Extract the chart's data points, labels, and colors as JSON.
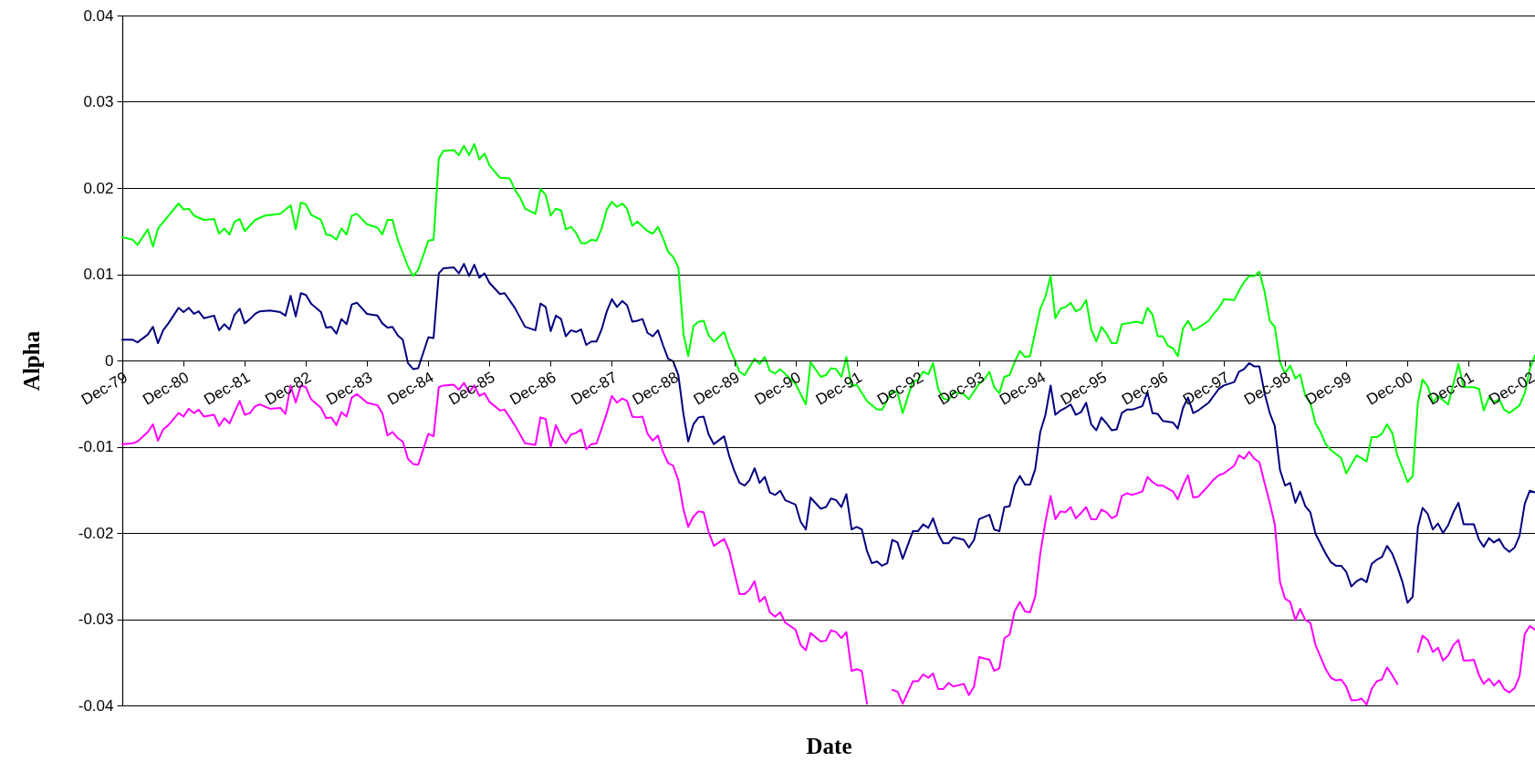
{
  "chart_data": {
    "type": "line",
    "xlabel": "Date",
    "ylabel": "Alpha",
    "grid": "y",
    "xlim": [
      "1979-12",
      "2003-01"
    ],
    "ylim": [
      -0.04,
      0.04
    ],
    "yticks": [
      -0.04,
      -0.03,
      -0.02,
      -0.01,
      0,
      0.01,
      0.02,
      0.03,
      0.04
    ],
    "xticks": [
      {
        "value": "1979-12",
        "label": "Dec-79"
      },
      {
        "value": "1980-12",
        "label": "Dec-80"
      },
      {
        "value": "1981-12",
        "label": "Dec-81"
      },
      {
        "value": "1982-12",
        "label": "Dec-82"
      },
      {
        "value": "1983-12",
        "label": "Dec-83"
      },
      {
        "value": "1984-12",
        "label": "Dec-84"
      },
      {
        "value": "1985-12",
        "label": "Dec-85"
      },
      {
        "value": "1986-12",
        "label": "Dec-86"
      },
      {
        "value": "1987-12",
        "label": "Dec-87"
      },
      {
        "value": "1988-12",
        "label": "Dec-88"
      },
      {
        "value": "1989-12",
        "label": "Dec-89"
      },
      {
        "value": "1990-12",
        "label": "Dec-90"
      },
      {
        "value": "1991-12",
        "label": "Dec-91"
      },
      {
        "value": "1992-12",
        "label": "Dec-92"
      },
      {
        "value": "1993-12",
        "label": "Dec-93"
      },
      {
        "value": "1994-12",
        "label": "Dec-94"
      },
      {
        "value": "1995-12",
        "label": "Dec-95"
      },
      {
        "value": "1996-12",
        "label": "Dec-96"
      },
      {
        "value": "1997-12",
        "label": "Dec-97"
      },
      {
        "value": "1998-12",
        "label": "Dec-98"
      },
      {
        "value": "1999-12",
        "label": "Dec-99"
      },
      {
        "value": "2000-12",
        "label": "Dec-00"
      },
      {
        "value": "2001-12",
        "label": "Dec-01"
      },
      {
        "value": "2002-12",
        "label": "Dec-02"
      }
    ],
    "series": [
      {
        "color": "#00ff00",
        "x": [
          "1979-12",
          "1980-02",
          "1980-03",
          "1980-05",
          "1980-06",
          "1980-07",
          "1980-11",
          "1980-12",
          "1981-01",
          "1981-02",
          "1981-04",
          "1981-06",
          "1981-07",
          "1981-08",
          "1981-09",
          "1981-10",
          "1981-11",
          "1981-12",
          "1982-02",
          "1982-04",
          "1982-07",
          "1982-09",
          "1982-10",
          "1982-11",
          "1982-12",
          "1983-01",
          "1983-03",
          "1983-04",
          "1983-05",
          "1983-06",
          "1983-07",
          "1983-08",
          "1983-09",
          "1983-10",
          "1983-12",
          "1984-02",
          "1984-03",
          "1984-04",
          "1984-05",
          "1984-06",
          "1984-08",
          "1984-09",
          "1984-10",
          "1984-12",
          "1985-01",
          "1985-02",
          "1985-03",
          "1985-05",
          "1985-06",
          "1985-07",
          "1985-08",
          "1985-09",
          "1985-10",
          "1985-11",
          "1985-12",
          "1986-02",
          "1986-04",
          "1986-05",
          "1986-06",
          "1986-07",
          "1986-09",
          "1986-10",
          "1986-11",
          "1986-12",
          "1987-01",
          "1987-02",
          "1987-03",
          "1987-04",
          "1987-05",
          "1987-06",
          "1987-07",
          "1987-08",
          "1987-09",
          "1987-10",
          "1987-11",
          "1987-12",
          "1988-01",
          "1988-02",
          "1988-03",
          "1988-04",
          "1988-05",
          "1988-07",
          "1988-08",
          "1988-09",
          "1988-10",
          "1988-11",
          "1988-12",
          "1989-01",
          "1989-02",
          "1989-03",
          "1989-04",
          "1989-05",
          "1989-06",
          "1989-07",
          "1989-08",
          "1989-10",
          "1989-11",
          "1989-12",
          "1990-01",
          "1990-02",
          "1990-04",
          "1990-05",
          "1990-06",
          "1990-07",
          "1990-08",
          "1990-09",
          "1990-12",
          "1991-02",
          "1991-03",
          "1991-05",
          "1991-06",
          "1991-07",
          "1991-08",
          "1991-09",
          "1991-10",
          "1991-11",
          "1991-12",
          "1992-02",
          "1992-04",
          "1992-05",
          "1992-07",
          "1992-08",
          "1992-09",
          "1992-11",
          "1992-12",
          "1993-01",
          "1993-02",
          "1993-03",
          "1993-04",
          "1993-05",
          "1993-06",
          "1993-07",
          "1993-09",
          "1993-10",
          "1993-12",
          "1994-01",
          "1994-02",
          "1994-03",
          "1994-04",
          "1994-05",
          "1994-06",
          "1994-07",
          "1994-08",
          "1994-09",
          "1994-10",
          "1994-12",
          "1995-01",
          "1995-02",
          "1995-03",
          "1995-04",
          "1995-05",
          "1995-06",
          "1995-07",
          "1995-08",
          "1995-09",
          "1995-10",
          "1995-11",
          "1995-12",
          "1996-01",
          "1996-02",
          "1996-03",
          "1996-04",
          "1996-05",
          "1996-07",
          "1996-08",
          "1996-09",
          "1996-10",
          "1996-11",
          "1996-12",
          "1997-01",
          "1997-02",
          "1997-03",
          "1997-04",
          "1997-05",
          "1997-06",
          "1997-07",
          "1997-09",
          "1997-10",
          "1997-11",
          "1997-12",
          "1998-02",
          "1998-03",
          "1998-04",
          "1998-05",
          "1998-06",
          "1998-07",
          "1998-08",
          "1998-09",
          "1998-10",
          "1998-11",
          "1998-12",
          "1999-01",
          "1999-02",
          "1999-03",
          "1999-04",
          "1999-05",
          "1999-06",
          "1999-07",
          "1999-08",
          "1999-09",
          "1999-11",
          "1999-12",
          "2000-02",
          "2000-04",
          "2000-05",
          "2000-06",
          "2000-07",
          "2000-08",
          "2000-09",
          "2000-10",
          "2000-11",
          "2000-12",
          "2001-01",
          "2001-02",
          "2001-03",
          "2001-04",
          "2001-05",
          "2001-06",
          "2001-08",
          "2001-09",
          "2001-10",
          "2001-11",
          "2002-01",
          "2002-02",
          "2002-03",
          "2002-04",
          "2002-05",
          "2002-06",
          "2002-07",
          "2002-08",
          "2002-10",
          "2002-11",
          "2002-12",
          "2003-01"
        ],
        "values": [
          0.0143,
          0.014,
          0.0134,
          0.0152,
          0.0132,
          0.0153,
          0.0182,
          0.0175,
          0.0176,
          0.0168,
          0.0163,
          0.0164,
          0.0147,
          0.0153,
          0.0146,
          0.0161,
          0.0164,
          0.015,
          0.0163,
          0.0168,
          0.017,
          0.018,
          0.0152,
          0.0183,
          0.0181,
          0.0169,
          0.0163,
          0.0146,
          0.0145,
          0.014,
          0.0153,
          0.0146,
          0.0168,
          0.017,
          0.0158,
          0.0154,
          0.0146,
          0.0163,
          0.0163,
          0.014,
          0.0109,
          0.0098,
          0.0105,
          0.0139,
          0.014,
          0.0234,
          0.0243,
          0.0244,
          0.0238,
          0.0249,
          0.0238,
          0.0251,
          0.0233,
          0.024,
          0.0226,
          0.0212,
          0.0211,
          0.0198,
          0.0189,
          0.0176,
          0.017,
          0.0199,
          0.0192,
          0.0168,
          0.0176,
          0.0174,
          0.0152,
          0.0155,
          0.0148,
          0.0136,
          0.0136,
          0.014,
          0.0139,
          0.0153,
          0.0175,
          0.0184,
          0.0178,
          0.0182,
          0.0176,
          0.0156,
          0.0161,
          0.015,
          0.0147,
          0.0155,
          0.0142,
          0.0126,
          0.012,
          0.0108,
          0.003,
          0.0005,
          0.004,
          0.0045,
          0.0046,
          0.0029,
          0.0022,
          0.0033,
          0.0015,
          0.0002,
          -0.0013,
          -0.0017,
          0.0002,
          -0.0004,
          0.0004,
          -0.0012,
          -0.0015,
          -0.001,
          -0.0027,
          -0.0051,
          -0.0002,
          -0.0019,
          -0.0017,
          -0.0009,
          -0.001,
          -0.0019,
          0.0004,
          -0.003,
          -0.0028,
          -0.0047,
          -0.0057,
          -0.0057,
          -0.0035,
          -0.0037,
          -0.0061,
          -0.0024,
          -0.0023,
          -0.0013,
          -0.0016,
          -0.0003,
          -0.0033,
          -0.0044,
          -0.0046,
          -0.0037,
          -0.0039,
          -0.0045,
          -0.0027,
          -0.0022,
          -0.0013,
          -0.0031,
          -0.0038,
          -0.0019,
          -0.0017,
          -0.0002,
          0.0011,
          0.0004,
          0.0005,
          0.006,
          0.0074,
          0.0098,
          0.0049,
          0.006,
          0.0062,
          0.0067,
          0.0057,
          0.006,
          0.007,
          0.0036,
          0.0022,
          0.0039,
          0.0031,
          0.002,
          0.002,
          0.0042,
          0.0043,
          0.0045,
          0.0043,
          0.0061,
          0.0053,
          0.0028,
          0.0028,
          0.0017,
          0.0014,
          0.0005,
          0.0037,
          0.0046,
          0.0035,
          0.0038,
          0.0046,
          0.0054,
          0.0061,
          0.0071,
          0.007,
          0.0081,
          0.0091,
          0.0098,
          0.0098,
          0.0103,
          0.008,
          0.0046,
          0.0039,
          -0.0002,
          -0.0015,
          -0.0006,
          -0.0021,
          -0.0016,
          -0.0041,
          -0.0049,
          -0.0073,
          -0.0083,
          -0.0097,
          -0.0104,
          -0.0113,
          -0.0131,
          -0.011,
          -0.0117,
          -0.0089,
          -0.0089,
          -0.0085,
          -0.0074,
          -0.0084,
          -0.011,
          -0.0125,
          -0.0141,
          -0.0134,
          -0.0049,
          -0.0022,
          -0.003,
          -0.0049,
          -0.0041,
          -0.0051,
          -0.0027,
          -0.0004,
          -0.0031,
          -0.0031,
          -0.0033,
          -0.0058,
          -0.0043,
          -0.0048,
          -0.0045,
          -0.0057,
          -0.0061,
          -0.0052,
          -0.0038,
          -0.001,
          0.0006
        ]
      },
      {
        "color": "#000080",
        "x": [
          "1979-12",
          "1980-02",
          "1980-03",
          "1980-05",
          "1980-06",
          "1980-07",
          "1980-08",
          "1980-09",
          "1980-11",
          "1980-12",
          "1981-01",
          "1981-02",
          "1981-03",
          "1981-04",
          "1981-06",
          "1981-07",
          "1981-08",
          "1981-09",
          "1981-10",
          "1981-11",
          "1981-12",
          "1982-01",
          "1982-02",
          "1982-03",
          "1982-05",
          "1982-07",
          "1982-08",
          "1982-09",
          "1982-10",
          "1982-11",
          "1982-12",
          "1983-01",
          "1983-03",
          "1983-04",
          "1983-05",
          "1983-06",
          "1983-07",
          "1983-08",
          "1983-09",
          "1983-10",
          "1983-12",
          "1984-02",
          "1984-03",
          "1984-04",
          "1984-05",
          "1984-06",
          "1984-07",
          "1984-08",
          "1984-09",
          "1984-10",
          "1984-12",
          "1985-01",
          "1985-02",
          "1985-03",
          "1985-05",
          "1985-06",
          "1985-07",
          "1985-08",
          "1985-09",
          "1985-10",
          "1985-11",
          "1985-12",
          "1986-02",
          "1986-03",
          "1986-05",
          "1986-07",
          "1986-09",
          "1986-10",
          "1986-11",
          "1986-12",
          "1987-01",
          "1987-02",
          "1987-03",
          "1987-04",
          "1987-05",
          "1987-06",
          "1987-07",
          "1987-08",
          "1987-09",
          "1987-10",
          "1987-11",
          "1987-12",
          "1988-01",
          "1988-02",
          "1988-03",
          "1988-04",
          "1988-05",
          "1988-06",
          "1988-07",
          "1988-08",
          "1988-09",
          "1988-10",
          "1988-11",
          "1988-12",
          "1989-01",
          "1989-02",
          "1989-03",
          "1989-04",
          "1989-05",
          "1989-06",
          "1989-07",
          "1989-08",
          "1989-10",
          "1989-11",
          "1989-12",
          "1990-01",
          "1990-02",
          "1990-03",
          "1990-04",
          "1990-05",
          "1990-06",
          "1990-07",
          "1990-08",
          "1990-09",
          "1990-10",
          "1990-12",
          "1991-01",
          "1991-02",
          "1991-03",
          "1991-05",
          "1991-06",
          "1991-07",
          "1991-08",
          "1991-09",
          "1991-10",
          "1991-11",
          "1991-12",
          "1992-01",
          "1992-02",
          "1992-03",
          "1992-04",
          "1992-05",
          "1992-06",
          "1992-07",
          "1992-08",
          "1992-09",
          "1992-11",
          "1992-12",
          "1993-01",
          "1993-02",
          "1993-03",
          "1993-04",
          "1993-05",
          "1993-06",
          "1993-07",
          "1993-09",
          "1993-10",
          "1993-11",
          "1993-12",
          "1994-02",
          "1994-03",
          "1994-04",
          "1994-05",
          "1994-06",
          "1994-07",
          "1994-08",
          "1994-09",
          "1994-10",
          "1994-11",
          "1994-12",
          "1995-01",
          "1995-02",
          "1995-03",
          "1995-04",
          "1995-05",
          "1995-06",
          "1995-07",
          "1995-08",
          "1995-09",
          "1995-10",
          "1995-11",
          "1995-12",
          "1996-01",
          "1996-02",
          "1996-03",
          "1996-04",
          "1996-05",
          "1996-06",
          "1996-08",
          "1996-09",
          "1996-10",
          "1996-11",
          "1996-12",
          "1997-02",
          "1997-03",
          "1997-04",
          "1997-05",
          "1997-06",
          "1997-07",
          "1997-09",
          "1997-10",
          "1997-11",
          "1997-12",
          "1998-02",
          "1998-03",
          "1998-04",
          "1998-05",
          "1998-06",
          "1998-07",
          "1998-08",
          "1998-09",
          "1998-10",
          "1998-11",
          "1998-12",
          "1999-01",
          "1999-02",
          "1999-03",
          "1999-04",
          "1999-05",
          "1999-06",
          "1999-08",
          "1999-09",
          "1999-10",
          "1999-11",
          "1999-12",
          "2000-01",
          "2000-02",
          "2000-03",
          "2000-04",
          "2000-05",
          "2000-06",
          "2000-07",
          "2000-08",
          "2000-09",
          "2000-10",
          "2000-11",
          "2000-12",
          "2001-01",
          "2001-02",
          "2001-03",
          "2001-04",
          "2001-05",
          "2001-06",
          "2001-07",
          "2001-08",
          "2001-09",
          "2001-10",
          "2001-11",
          "2001-12",
          "2002-01",
          "2002-02",
          "2002-03",
          "2002-04",
          "2002-05",
          "2002-06",
          "2002-07",
          "2002-08",
          "2002-09",
          "2002-10",
          "2002-11",
          "2002-12",
          "2003-01"
        ],
        "values": [
          0.0024,
          0.0024,
          0.0021,
          0.003,
          0.0039,
          0.002,
          0.0035,
          0.0043,
          0.0061,
          0.0056,
          0.0061,
          0.0054,
          0.0057,
          0.0049,
          0.0052,
          0.0035,
          0.0042,
          0.0036,
          0.0053,
          0.006,
          0.0043,
          0.0048,
          0.0054,
          0.0057,
          0.0058,
          0.0056,
          0.0052,
          0.0075,
          0.0051,
          0.0078,
          0.0076,
          0.0066,
          0.0056,
          0.0038,
          0.0039,
          0.0031,
          0.0048,
          0.0042,
          0.0065,
          0.0067,
          0.0054,
          0.0052,
          0.0043,
          0.0038,
          0.0039,
          0.0029,
          0.0024,
          -0.0003,
          -0.001,
          -0.0009,
          0.0027,
          0.0026,
          0.0101,
          0.0107,
          0.0108,
          0.0101,
          0.0112,
          0.0098,
          0.0111,
          0.0096,
          0.0101,
          0.009,
          0.0077,
          0.0078,
          0.0061,
          0.0039,
          0.0035,
          0.0066,
          0.0062,
          0.0034,
          0.0052,
          0.0048,
          0.0028,
          0.0035,
          0.0033,
          0.0036,
          0.0018,
          0.0022,
          0.0022,
          0.0036,
          0.0057,
          0.0071,
          0.0062,
          0.0069,
          0.0064,
          0.0045,
          0.0046,
          0.0048,
          0.0032,
          0.0028,
          0.0035,
          0.0018,
          0.0002,
          -0.0001,
          -0.0017,
          -0.0063,
          -0.0094,
          -0.0074,
          -0.0066,
          -0.0065,
          -0.0086,
          -0.0097,
          -0.0088,
          -0.0111,
          -0.0128,
          -0.0142,
          -0.0145,
          -0.0139,
          -0.0125,
          -0.0142,
          -0.0135,
          -0.0153,
          -0.0156,
          -0.0151,
          -0.0162,
          -0.0167,
          -0.0187,
          -0.0196,
          -0.0159,
          -0.0172,
          -0.017,
          -0.016,
          -0.0162,
          -0.017,
          -0.0155,
          -0.0196,
          -0.0193,
          -0.0196,
          -0.0221,
          -0.0235,
          -0.0233,
          -0.0238,
          -0.0235,
          -0.0208,
          -0.0211,
          -0.023,
          -0.0198,
          -0.0198,
          -0.019,
          -0.0194,
          -0.0183,
          -0.0201,
          -0.0212,
          -0.0212,
          -0.0205,
          -0.0208,
          -0.0217,
          -0.0208,
          -0.0184,
          -0.0179,
          -0.0196,
          -0.0198,
          -0.017,
          -0.0169,
          -0.0145,
          -0.0134,
          -0.0144,
          -0.0144,
          -0.0126,
          -0.0083,
          -0.0063,
          -0.0029,
          -0.0063,
          -0.0058,
          -0.0055,
          -0.0051,
          -0.0063,
          -0.006,
          -0.0049,
          -0.0074,
          -0.0081,
          -0.0066,
          -0.0073,
          -0.0081,
          -0.008,
          -0.0061,
          -0.0057,
          -0.0057,
          -0.0053,
          -0.0037,
          -0.0061,
          -0.0062,
          -0.007,
          -0.0072,
          -0.0079,
          -0.0055,
          -0.0043,
          -0.0061,
          -0.0058,
          -0.0049,
          -0.0041,
          -0.0033,
          -0.0029,
          -0.0025,
          -0.0013,
          -0.001,
          -0.0003,
          -0.0007,
          -0.0007,
          -0.0038,
          -0.0061,
          -0.0076,
          -0.0127,
          -0.0145,
          -0.0142,
          -0.0165,
          -0.0152,
          -0.0169,
          -0.0176,
          -0.0201,
          -0.0224,
          -0.0234,
          -0.0238,
          -0.0238,
          -0.0245,
          -0.0262,
          -0.0256,
          -0.0253,
          -0.0257,
          -0.0236,
          -0.0231,
          -0.0228,
          -0.0215,
          -0.0224,
          -0.0239,
          -0.0257,
          -0.0281,
          -0.0274,
          -0.0193,
          -0.0171,
          -0.0178,
          -0.0196,
          -0.0189,
          -0.02,
          -0.0191,
          -0.0176,
          -0.0165,
          -0.019,
          -0.019,
          -0.019,
          -0.0208,
          -0.0216,
          -0.0206,
          -0.0211,
          -0.0207,
          -0.0217,
          -0.0222,
          -0.0217,
          -0.0203,
          -0.0166,
          -0.0151,
          -0.0153
        ]
      },
      {
        "color": "#ff00ff",
        "x": [
          "1979-12",
          "1980-02",
          "1980-03",
          "1980-05",
          "1980-06",
          "1980-07",
          "1980-08",
          "1980-09",
          "1980-11",
          "1980-12",
          "1981-01",
          "1981-02",
          "1981-03",
          "1981-04",
          "1981-06",
          "1981-07",
          "1981-08",
          "1981-09",
          "1981-10",
          "1981-11",
          "1981-12",
          "1982-01",
          "1982-02",
          "1982-03",
          "1982-05",
          "1982-07",
          "1982-08",
          "1982-09",
          "1982-10",
          "1982-11",
          "1982-12",
          "1983-01",
          "1983-03",
          "1983-04",
          "1983-05",
          "1983-06",
          "1983-07",
          "1983-08",
          "1983-09",
          "1983-10",
          "1983-12",
          "1984-02",
          "1984-03",
          "1984-04",
          "1984-05",
          "1984-06",
          "1984-07",
          "1984-08",
          "1984-09",
          "1984-10",
          "1984-12",
          "1985-01",
          "1985-02",
          "1985-03",
          "1985-05",
          "1985-06",
          "1985-07",
          "1985-08",
          "1985-09",
          "1985-10",
          "1985-11",
          "1985-12",
          "1986-02",
          "1986-03",
          "1986-05",
          "1986-07",
          "1986-09",
          "1986-10",
          "1986-11",
          "1986-12",
          "1987-01",
          "1987-02",
          "1987-03",
          "1987-04",
          "1987-05",
          "1987-06",
          "1987-07",
          "1987-08",
          "1987-09",
          "1987-10",
          "1987-11",
          "1987-12",
          "1988-01",
          "1988-02",
          "1988-03",
          "1988-04",
          "1988-05",
          "1988-06",
          "1988-07",
          "1988-08",
          "1988-09",
          "1988-10",
          "1988-11",
          "1988-12",
          "1989-01",
          "1989-02",
          "1989-03",
          "1989-04",
          "1989-05",
          "1989-06",
          "1989-07",
          "1989-08",
          "1989-10",
          "1989-11",
          "1989-12",
          "1990-01",
          "1990-02",
          "1990-03",
          "1990-04",
          "1990-05",
          "1990-06",
          "1990-07",
          "1990-08",
          "1990-09",
          "1990-10",
          "1990-12",
          "1991-01",
          "1991-02",
          "1991-03",
          "1991-05",
          "1991-06",
          "1991-07",
          "1991-08",
          "1991-09",
          "1991-10",
          "1991-11",
          "1991-12",
          "1992-01",
          "1992-02",
          "1992-03",
          "1992-07",
          "1992-08",
          "1992-09",
          "1992-11",
          "1992-12",
          "1993-01",
          "1993-02",
          "1993-03",
          "1993-04",
          "1993-05",
          "1993-06",
          "1993-07",
          "1993-09",
          "1993-10",
          "1993-11",
          "1993-12",
          "1994-02",
          "1994-03",
          "1994-04",
          "1994-05",
          "1994-06",
          "1994-07",
          "1994-08",
          "1994-09",
          "1994-10",
          "1994-11",
          "1994-12",
          "1995-01",
          "1995-02",
          "1995-03",
          "1995-04",
          "1995-05",
          "1995-06",
          "1995-07",
          "1995-08",
          "1995-09",
          "1995-10",
          "1995-11",
          "1995-12",
          "1996-01",
          "1996-02",
          "1996-03",
          "1996-04",
          "1996-05",
          "1996-06",
          "1996-08",
          "1996-09",
          "1996-10",
          "1996-11",
          "1996-12",
          "1997-02",
          "1997-03",
          "1997-04",
          "1997-05",
          "1997-06",
          "1997-07",
          "1997-09",
          "1997-10",
          "1997-11",
          "1997-12",
          "1998-02",
          "1998-03",
          "1998-04",
          "1998-05",
          "1998-06",
          "1998-07",
          "1998-08",
          "1998-09",
          "1998-10",
          "1998-11",
          "1998-12",
          "1999-01",
          "1999-02",
          "1999-03",
          "1999-04",
          "1999-05",
          "1999-06",
          "1999-08",
          "1999-09",
          "1999-10",
          "1999-11",
          "1999-12",
          "2000-01",
          "2000-02",
          "2000-03",
          "2000-04",
          "2000-05",
          "2000-06",
          "2000-07",
          "2000-08",
          "2000-09",
          "2000-10",
          "2000-12",
          "2001-02",
          "2001-03",
          "2001-04",
          "2001-05",
          "2001-06",
          "2001-07",
          "2001-08",
          "2001-09",
          "2001-10",
          "2001-11",
          "2001-12",
          "2002-01",
          "2002-02",
          "2002-03",
          "2002-04",
          "2002-05",
          "2002-06",
          "2002-07",
          "2002-08",
          "2002-09",
          "2002-10",
          "2002-11",
          "2002-12",
          "2003-01"
        ],
        "values": [
          -0.0097,
          -0.0096,
          -0.0094,
          -0.0083,
          -0.0074,
          -0.0093,
          -0.008,
          -0.0075,
          -0.0061,
          -0.0065,
          -0.0056,
          -0.0061,
          -0.0057,
          -0.0065,
          -0.0063,
          -0.0076,
          -0.0067,
          -0.0073,
          -0.006,
          -0.0047,
          -0.0063,
          -0.0061,
          -0.0053,
          -0.0051,
          -0.0056,
          -0.0055,
          -0.0062,
          -0.0029,
          -0.0049,
          -0.0029,
          -0.0031,
          -0.0045,
          -0.0055,
          -0.0067,
          -0.0066,
          -0.0075,
          -0.006,
          -0.0065,
          -0.0043,
          -0.0039,
          -0.0049,
          -0.0052,
          -0.0061,
          -0.0087,
          -0.0083,
          -0.009,
          -0.0094,
          -0.0114,
          -0.012,
          -0.0121,
          -0.0085,
          -0.0088,
          -0.0031,
          -0.0029,
          -0.0028,
          -0.0034,
          -0.0026,
          -0.0037,
          -0.0029,
          -0.0041,
          -0.0038,
          -0.0048,
          -0.0058,
          -0.0057,
          -0.0075,
          -0.0096,
          -0.0098,
          -0.0066,
          -0.0068,
          -0.01,
          -0.0075,
          -0.0088,
          -0.0096,
          -0.0086,
          -0.0084,
          -0.008,
          -0.0103,
          -0.0097,
          -0.0096,
          -0.0079,
          -0.0061,
          -0.0041,
          -0.0049,
          -0.0044,
          -0.0047,
          -0.0065,
          -0.0066,
          -0.0065,
          -0.0085,
          -0.0093,
          -0.0087,
          -0.0106,
          -0.0119,
          -0.0122,
          -0.0139,
          -0.0173,
          -0.0193,
          -0.0181,
          -0.0175,
          -0.0176,
          -0.0199,
          -0.0215,
          -0.0207,
          -0.0221,
          -0.0246,
          -0.0271,
          -0.0271,
          -0.0266,
          -0.0256,
          -0.028,
          -0.0274,
          -0.0292,
          -0.0297,
          -0.0292,
          -0.0304,
          -0.0312,
          -0.033,
          -0.0336,
          -0.0316,
          -0.0326,
          -0.0325,
          -0.0313,
          -0.0315,
          -0.0322,
          -0.0315,
          -0.036,
          -0.0358,
          -0.036,
          -0.0398,
          null,
          -0.0382,
          -0.0384,
          -0.0398,
          -0.0372,
          -0.0372,
          -0.0364,
          -0.0368,
          -0.0363,
          -0.0381,
          -0.0381,
          -0.0374,
          -0.0378,
          -0.0375,
          -0.0388,
          -0.0378,
          -0.0344,
          -0.0347,
          -0.036,
          -0.0357,
          -0.0322,
          -0.0318,
          -0.0291,
          -0.028,
          -0.0291,
          -0.0292,
          -0.0274,
          -0.0224,
          -0.0187,
          -0.0157,
          -0.0184,
          -0.0175,
          -0.0176,
          -0.017,
          -0.0183,
          -0.0177,
          -0.017,
          -0.0184,
          -0.0184,
          -0.0173,
          -0.0176,
          -0.0183,
          -0.018,
          -0.0157,
          -0.0154,
          -0.0156,
          -0.0152,
          -0.0135,
          -0.0141,
          -0.0145,
          -0.0145,
          -0.0152,
          -0.0161,
          -0.0145,
          -0.0133,
          -0.0159,
          -0.0158,
          -0.0145,
          -0.0138,
          -0.0133,
          -0.0131,
          -0.0122,
          -0.011,
          -0.0114,
          -0.0106,
          -0.0114,
          -0.0118,
          -0.0142,
          -0.0165,
          -0.019,
          -0.0257,
          -0.0276,
          -0.028,
          -0.0301,
          -0.0288,
          -0.0301,
          -0.0304,
          -0.033,
          -0.0358,
          -0.0368,
          -0.0371,
          -0.037,
          -0.0378,
          -0.0394,
          -0.0394,
          -0.0392,
          -0.0399,
          -0.0381,
          -0.0372,
          -0.037,
          -0.0356,
          -0.0365,
          -0.0375,
          null,
          -0.0338,
          -0.0319,
          -0.0324,
          -0.0338,
          -0.0333,
          -0.0348,
          -0.0342,
          -0.033,
          -0.0324,
          -0.0348,
          -0.0348,
          -0.0347,
          -0.0365,
          -0.0375,
          -0.0369,
          -0.0377,
          -0.0371,
          -0.0381,
          -0.0385,
          -0.038,
          -0.0366,
          -0.0317,
          -0.0308,
          -0.0312
        ]
      }
    ]
  }
}
